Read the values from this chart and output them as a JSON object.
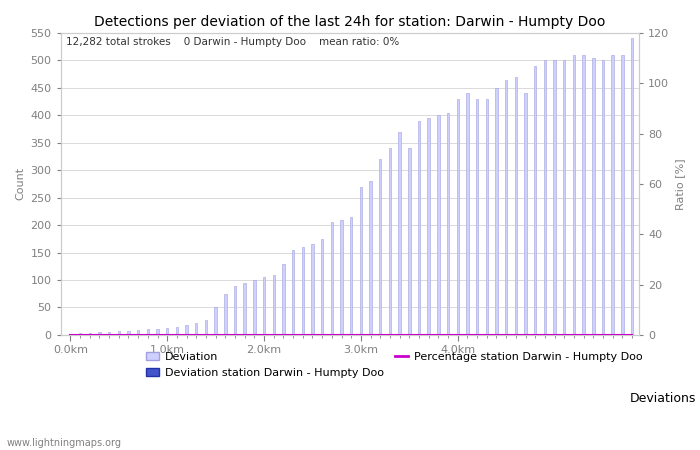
{
  "title": "Detections per deviation of the last 24h for station: Darwin - Humpty Doo",
  "subtitle": "12,282 total strokes    0 Darwin - Humpty Doo    mean ratio: 0%",
  "xlabel_right": "Deviations",
  "ylabel_left": "Count",
  "ylabel_right": "Ratio [%]",
  "watermark": "www.lightningmaps.org",
  "ylim_left": [
    0,
    550
  ],
  "ylim_right": [
    0,
    120
  ],
  "yticks_left": [
    0,
    50,
    100,
    150,
    200,
    250,
    300,
    350,
    400,
    450,
    500,
    550
  ],
  "yticks_right": [
    0,
    20,
    40,
    60,
    80,
    100,
    120
  ],
  "bar_width": 0.025,
  "x_start": 0.0,
  "x_step": 0.1,
  "xtick_positions": [
    0.0,
    1.0,
    2.0,
    3.0,
    4.0
  ],
  "xtick_labels": [
    "0.0km",
    "1.0km",
    "2.0km",
    "3.0km",
    "4.0km"
  ],
  "bar_values": [
    2,
    3,
    4,
    5,
    6,
    7,
    8,
    9,
    10,
    11,
    12,
    15,
    18,
    22,
    28,
    50,
    75,
    90,
    95,
    100,
    105,
    110,
    130,
    155,
    160,
    165,
    175,
    205,
    210,
    215,
    270,
    280,
    320,
    340,
    370,
    340,
    390,
    395,
    400,
    405,
    430,
    440,
    430,
    430,
    450,
    465,
    470,
    440,
    490,
    500,
    500,
    500,
    510,
    510,
    505,
    500,
    510,
    510,
    540
  ],
  "station_bar_values": [
    0,
    0,
    0,
    0,
    0,
    0,
    0,
    0,
    0,
    0,
    0,
    0,
    0,
    0,
    0,
    0,
    0,
    0,
    0,
    0,
    0,
    0,
    0,
    0,
    0,
    0,
    0,
    0,
    0,
    0,
    0,
    0,
    0,
    0,
    0,
    0,
    0,
    0,
    0,
    0,
    0,
    0,
    0,
    0,
    0,
    0,
    0,
    0,
    0,
    0,
    0,
    0,
    0,
    0,
    0,
    0,
    0,
    0,
    0
  ],
  "percentage_values": [
    0,
    0,
    0,
    0,
    0,
    0,
    0,
    0,
    0,
    0,
    0,
    0,
    0,
    0,
    0,
    0,
    0,
    0,
    0,
    0,
    0,
    0,
    0,
    0,
    0,
    0,
    0,
    0,
    0,
    0,
    0,
    0,
    0,
    0,
    0,
    0,
    0,
    0,
    0,
    0,
    0,
    0,
    0,
    0,
    0,
    0,
    0,
    0,
    0,
    0,
    0,
    0,
    0,
    0,
    0,
    0,
    0,
    0,
    0
  ],
  "bar_color": "#d0d0ff",
  "bar_edge_color": "#a0a0dd",
  "station_bar_color": "#4455cc",
  "station_bar_edge_color": "#2233aa",
  "percentage_line_color": "#cc00cc",
  "background_color": "#ffffff",
  "grid_color": "#cccccc",
  "title_fontsize": 10,
  "axis_label_fontsize": 8,
  "tick_fontsize": 8,
  "legend_fontsize": 8,
  "subtitle_fontsize": 7.5
}
